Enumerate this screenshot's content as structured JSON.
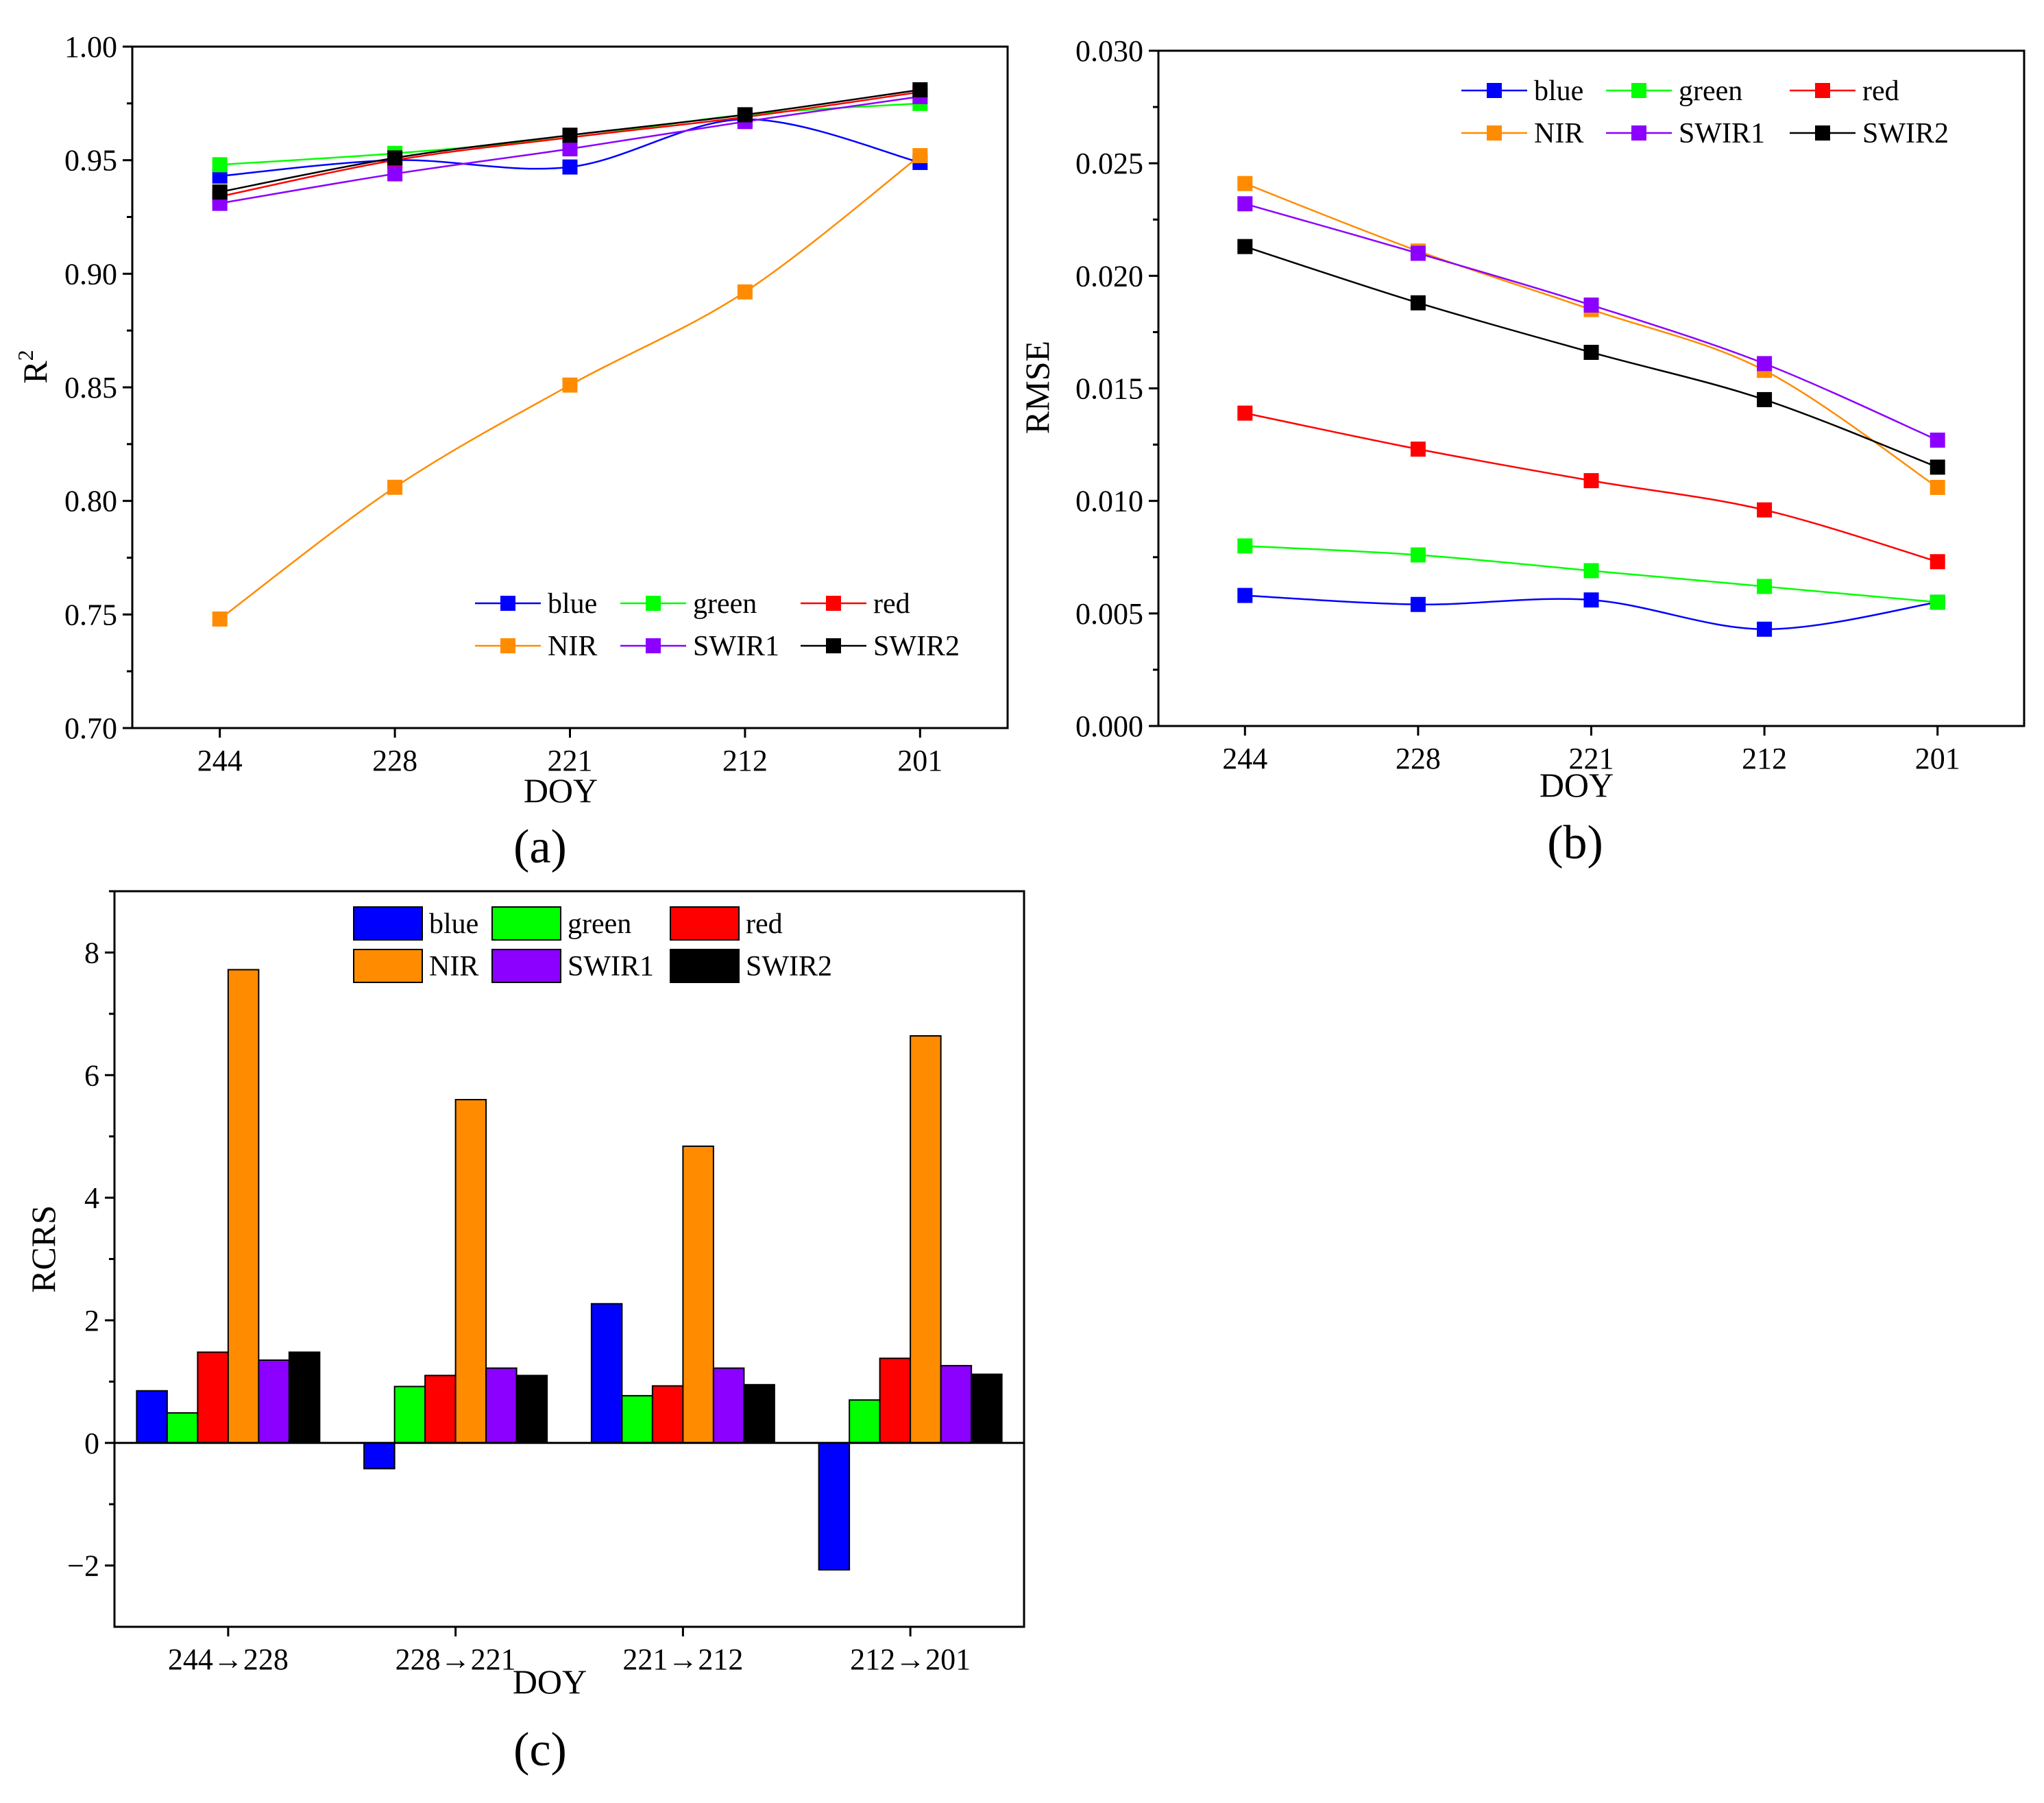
{
  "chart_data": [
    {
      "id": "a",
      "type": "line",
      "panel_label": "(a)",
      "xlabel": "DOY",
      "ylabel": "R",
      "ylabel_sup": "2",
      "categories": [
        "244",
        "228",
        "221",
        "212",
        "201"
      ],
      "ylim": [
        0.7,
        1.0
      ],
      "yticks": [
        "0.70",
        "0.75",
        "0.80",
        "0.85",
        "0.90",
        "0.95",
        "1.00"
      ],
      "legend_position": "bottom-right",
      "series": [
        {
          "name": "blue",
          "color": "#0000ff",
          "values": [
            0.943,
            0.95,
            0.947,
            0.968,
            0.949
          ]
        },
        {
          "name": "green",
          "color": "#00ff00",
          "values": [
            0.948,
            0.953,
            0.96,
            0.97,
            0.975
          ]
        },
        {
          "name": "red",
          "color": "#ff0000",
          "values": [
            0.934,
            0.95,
            0.96,
            0.969,
            0.98
          ]
        },
        {
          "name": "NIR",
          "color": "#ff8c00",
          "values": [
            0.748,
            0.806,
            0.851,
            0.892,
            0.952
          ]
        },
        {
          "name": "SWIR1",
          "color": "#8b00ff",
          "values": [
            0.931,
            0.944,
            0.955,
            0.967,
            0.978
          ]
        },
        {
          "name": "SWIR2",
          "color": "#000000",
          "values": [
            0.936,
            0.951,
            0.961,
            0.97,
            0.981
          ]
        }
      ]
    },
    {
      "id": "b",
      "type": "line",
      "panel_label": "(b)",
      "xlabel": "DOY",
      "ylabel": "RMSE",
      "categories": [
        "244",
        "228",
        "221",
        "212",
        "201"
      ],
      "ylim": [
        0.0,
        0.03
      ],
      "yticks": [
        "0.000",
        "0.005",
        "0.010",
        "0.015",
        "0.020",
        "0.025",
        "0.030"
      ],
      "legend_position": "top-right",
      "series": [
        {
          "name": "blue",
          "color": "#0000ff",
          "values": [
            0.0058,
            0.0054,
            0.0056,
            0.0043,
            0.0055
          ]
        },
        {
          "name": "green",
          "color": "#00ff00",
          "values": [
            0.008,
            0.0076,
            0.0069,
            0.0062,
            0.0055
          ]
        },
        {
          "name": "red",
          "color": "#ff0000",
          "values": [
            0.0139,
            0.0123,
            0.0109,
            0.0096,
            0.0073
          ]
        },
        {
          "name": "NIR",
          "color": "#ff8c00",
          "values": [
            0.0241,
            0.0211,
            0.0185,
            0.0158,
            0.0106
          ]
        },
        {
          "name": "SWIR1",
          "color": "#8b00ff",
          "values": [
            0.0232,
            0.021,
            0.0187,
            0.0161,
            0.0127
          ]
        },
        {
          "name": "SWIR2",
          "color": "#000000",
          "values": [
            0.0213,
            0.0188,
            0.0166,
            0.0145,
            0.0115
          ]
        }
      ]
    },
    {
      "id": "c",
      "type": "bar",
      "panel_label": "(c)",
      "xlabel": "DOY",
      "ylabel": "RCRS",
      "categories": [
        "244→228",
        "228→221",
        "221→212",
        "212→201"
      ],
      "ylim": [
        -3,
        9
      ],
      "yticks": [
        "−2",
        "0",
        "2",
        "4",
        "6",
        "8"
      ],
      "yticks_values": [
        -2,
        0,
        2,
        4,
        6,
        8
      ],
      "legend_position": "top-center",
      "series": [
        {
          "name": "blue",
          "color": "#0000ff",
          "values": [
            0.85,
            -0.42,
            2.27,
            -2.07
          ]
        },
        {
          "name": "green",
          "color": "#00ff00",
          "values": [
            0.49,
            0.92,
            0.77,
            0.7
          ]
        },
        {
          "name": "red",
          "color": "#ff0000",
          "values": [
            1.48,
            1.1,
            0.93,
            1.38
          ]
        },
        {
          "name": "NIR",
          "color": "#ff8c00",
          "values": [
            7.72,
            5.6,
            4.84,
            6.64
          ]
        },
        {
          "name": "SWIR1",
          "color": "#8b00ff",
          "values": [
            1.35,
            1.22,
            1.22,
            1.26
          ]
        },
        {
          "name": "SWIR2",
          "color": "#000000",
          "values": [
            1.48,
            1.1,
            0.95,
            1.12
          ]
        }
      ]
    }
  ]
}
